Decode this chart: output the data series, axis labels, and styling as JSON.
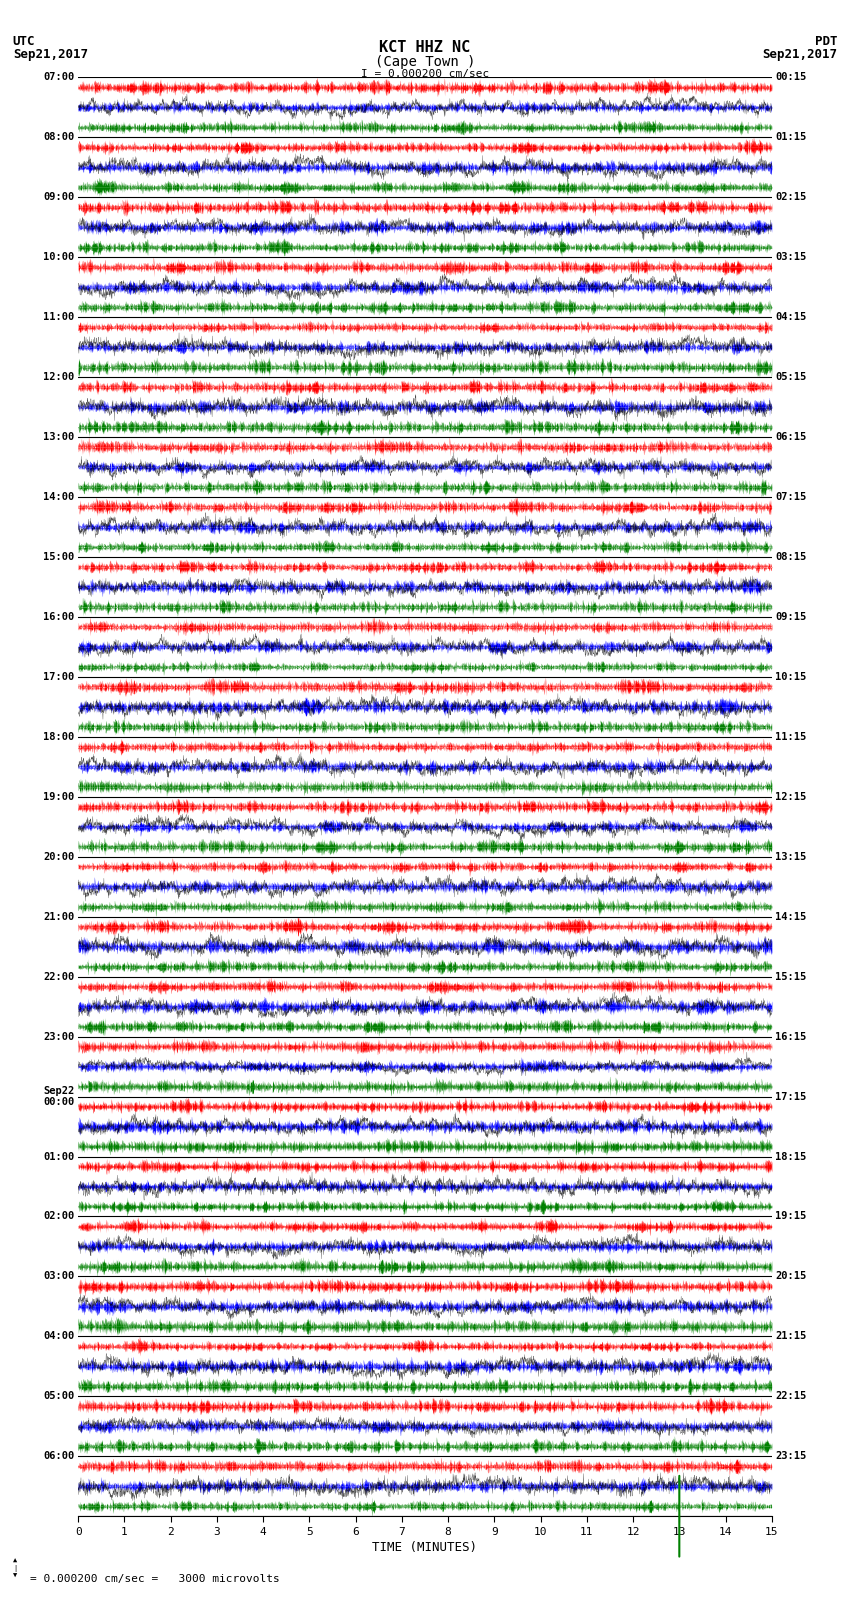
{
  "title_line1": "KCT HHZ NC",
  "title_line2": "(Cape Town )",
  "scale_label": "I = 0.000200 cm/sec",
  "footer_label": "= 0.000200 cm/sec =   3000 microvolts",
  "left_times": [
    "07:00",
    "08:00",
    "09:00",
    "10:00",
    "11:00",
    "12:00",
    "13:00",
    "14:00",
    "15:00",
    "16:00",
    "17:00",
    "18:00",
    "19:00",
    "20:00",
    "21:00",
    "22:00",
    "23:00",
    "Sep22\n00:00",
    "01:00",
    "02:00",
    "03:00",
    "04:00",
    "05:00",
    "06:00"
  ],
  "right_times": [
    "00:15",
    "01:15",
    "02:15",
    "03:15",
    "04:15",
    "05:15",
    "06:15",
    "07:15",
    "08:15",
    "09:15",
    "10:15",
    "11:15",
    "12:15",
    "13:15",
    "14:15",
    "15:15",
    "16:15",
    "17:15",
    "18:15",
    "19:15",
    "20:15",
    "21:15",
    "22:15",
    "23:15"
  ],
  "xlabel": "TIME (MINUTES)",
  "xticks": [
    0,
    1,
    2,
    3,
    4,
    5,
    6,
    7,
    8,
    9,
    10,
    11,
    12,
    13,
    14,
    15
  ],
  "num_rows": 24,
  "bg_color": "#ffffff",
  "colors": [
    "#ff0000",
    "#0000ff",
    "#008000",
    "#000000"
  ],
  "samples_per_row": 3000,
  "sub_rows": 3,
  "amplitude": 0.48,
  "linewidth": 0.5
}
